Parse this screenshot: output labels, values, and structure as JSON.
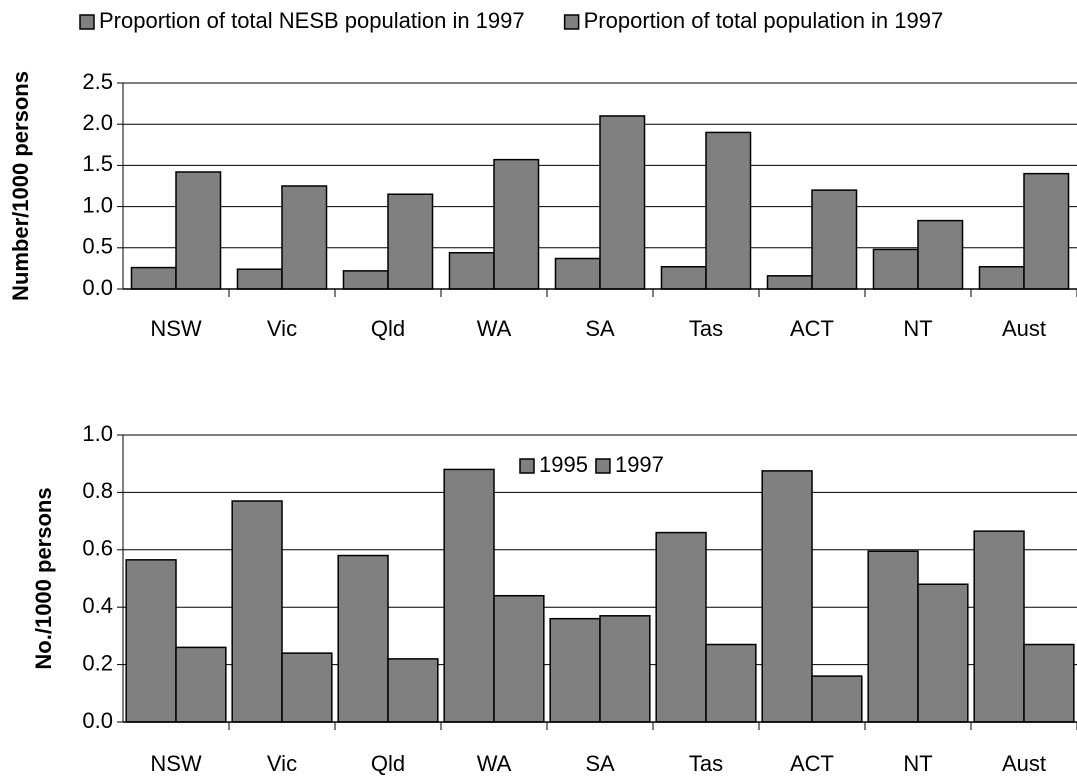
{
  "chart_data": [
    {
      "type": "bar",
      "y_label": "Number/1000 persons",
      "legend": "top",
      "categories": [
        "NSW",
        "Vic",
        "Qld",
        "WA",
        "SA",
        "Tas",
        "ACT",
        "NT",
        "Aust"
      ],
      "series": [
        {
          "name": "Proportion of total NESB population in 1997",
          "color": "#808080",
          "values": [
            0.26,
            0.24,
            0.22,
            0.44,
            0.37,
            0.27,
            0.16,
            0.48,
            0.27
          ]
        },
        {
          "name": "Proportion of total population in 1997",
          "color": "#808080",
          "values": [
            1.42,
            1.25,
            1.15,
            1.57,
            2.1,
            1.9,
            1.2,
            0.83,
            1.4
          ]
        }
      ],
      "ylim": [
        0,
        2.5
      ],
      "yticks": [
        {
          "value": 0,
          "label": "0.0"
        },
        0.5,
        {
          "value": 1,
          "label": "1.0"
        },
        1.5,
        {
          "value": 2,
          "label": "2.0"
        },
        2.5
      ],
      "grid": true
    },
    {
      "type": "bar",
      "y_label": "No./1000 persons",
      "legend": "inside-top",
      "categories": [
        "NSW",
        "Vic",
        "Qld",
        "WA",
        "SA",
        "Tas",
        "ACT",
        "NT",
        "Aust"
      ],
      "series": [
        {
          "name": "1995",
          "color": "#808080",
          "values": [
            0.565,
            0.77,
            0.58,
            0.88,
            0.36,
            0.66,
            0.875,
            0.595,
            0.665
          ]
        },
        {
          "name": "1997",
          "color": "#808080",
          "values": [
            0.26,
            0.24,
            0.22,
            0.44,
            0.37,
            0.27,
            0.16,
            0.48,
            0.27
          ]
        }
      ],
      "ylim": [
        0,
        1
      ],
      "yticks": [
        {
          "value": 0,
          "label": "0.0"
        },
        0.2,
        0.4,
        0.6,
        0.8,
        {
          "value": 1,
          "label": "1.0"
        }
      ],
      "grid": true
    }
  ]
}
